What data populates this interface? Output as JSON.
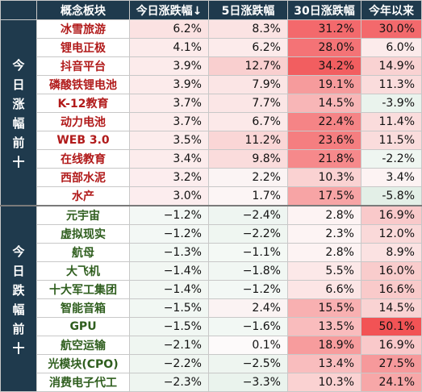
{
  "headers": [
    "概念板块",
    "今日涨跌幅↓",
    "5日涨跌幅",
    "30日涨跌幅",
    "今年以来"
  ],
  "groups": [
    {
      "label": "今日涨幅前十",
      "kind": "top",
      "rows": [
        {
          "name": "冰雪旅游",
          "vals": [
            "6.2%",
            "8.3%",
            "31.2%",
            "30.0%"
          ],
          "bg": [
            "#fbe2e2",
            "#fbe3e3",
            "#f3696c",
            "#f3696c"
          ]
        },
        {
          "name": "锂电正极",
          "vals": [
            "4.1%",
            "6.2%",
            "28.0%",
            "6.0%"
          ],
          "bg": [
            "#fcebeb",
            "#fcebeb",
            "#f47376",
            "#fcebeb"
          ]
        },
        {
          "name": "抖音平台",
          "vals": [
            "3.9%",
            "12.7%",
            "34.2%",
            "14.9%"
          ],
          "bg": [
            "#fcebeb",
            "#f9cfcf",
            "#f25e60",
            "#f9d2d2"
          ]
        },
        {
          "name": "磷酸铁锂电池",
          "vals": [
            "3.9%",
            "7.9%",
            "19.1%",
            "11.3%"
          ],
          "bg": [
            "#fcebeb",
            "#fbe5e5",
            "#f69b9c",
            "#fadcdc"
          ]
        },
        {
          "name": "K-12教育",
          "vals": [
            "3.7%",
            "7.7%",
            "14.5%",
            "-3.9%"
          ],
          "bg": [
            "#fcecec",
            "#fbe6e6",
            "#f8b6b7",
            "#eaf3ed"
          ]
        },
        {
          "name": "动力电池",
          "vals": [
            "3.7%",
            "6.7%",
            "22.4%",
            "11.4%"
          ],
          "bg": [
            "#fcecec",
            "#fce9e9",
            "#f58486",
            "#fadcdc"
          ]
        },
        {
          "name": "WEB 3.0",
          "vals": [
            "3.5%",
            "11.2%",
            "23.6%",
            "11.5%"
          ],
          "bg": [
            "#fcecec",
            "#fad6d6",
            "#f57e80",
            "#fadcdc"
          ]
        },
        {
          "name": "在线教育",
          "vals": [
            "3.4%",
            "9.8%",
            "21.8%",
            "-2.2%"
          ],
          "bg": [
            "#fcecec",
            "#fadcdc",
            "#f6898b",
            "#eff6f1"
          ]
        },
        {
          "name": "西部水泥",
          "vals": [
            "3.2%",
            "2.2%",
            "10.3%",
            "3.4%"
          ],
          "bg": [
            "#fcedee",
            "#fbf4f4",
            "#fad2d2",
            "#fdf3f3"
          ]
        },
        {
          "name": "水产",
          "vals": [
            "3.0%",
            "1.7%",
            "17.5%",
            "-5.8%"
          ],
          "bg": [
            "#fcedee",
            "#fcf5f5",
            "#f7a4a5",
            "#e3efe7"
          ]
        }
      ]
    },
    {
      "label": "今日跌幅前十",
      "kind": "bot",
      "rows": [
        {
          "name": "元宇宙",
          "vals": [
            "−1.2%",
            "−2.4%",
            "2.8%",
            "16.9%"
          ],
          "bg": [
            "#f3f8f5",
            "#eef5f1",
            "#fdf3f3",
            "#f9c9ca"
          ]
        },
        {
          "name": "虚拟现实",
          "vals": [
            "−1.2%",
            "−2.2%",
            "2.3%",
            "12.0%"
          ],
          "bg": [
            "#f3f8f5",
            "#eff6f1",
            "#fdf4f4",
            "#fad9d9"
          ]
        },
        {
          "name": "航母",
          "vals": [
            "−1.3%",
            "−1.1%",
            "2.8%",
            "8.9%"
          ],
          "bg": [
            "#f2f8f4",
            "#f4f9f5",
            "#fdf3f3",
            "#fbe2e2"
          ]
        },
        {
          "name": "大飞机",
          "vals": [
            "−1.4%",
            "−1.8%",
            "5.5%",
            "16.0%"
          ],
          "bg": [
            "#f2f7f3",
            "#f1f7f3",
            "#fce8e8",
            "#f9cccc"
          ]
        },
        {
          "name": "十大军工集团",
          "vals": [
            "−1.4%",
            "−1.2%",
            "6.6%",
            "16.6%"
          ],
          "bg": [
            "#f2f7f3",
            "#f3f8f5",
            "#fce5e5",
            "#f9caca"
          ]
        },
        {
          "name": "智能音箱",
          "vals": [
            "−1.5%",
            "2.4%",
            "15.5%",
            "14.5%"
          ],
          "bg": [
            "#f1f7f3",
            "#fbf3f3",
            "#f8b0b1",
            "#f9d3d3"
          ]
        },
        {
          "name": "GPU",
          "vals": [
            "−1.5%",
            "−1.6%",
            "13.5%",
            "50.1%"
          ],
          "bg": [
            "#f1f7f3",
            "#f2f8f4",
            "#f9bcbd",
            "#f25355"
          ]
        },
        {
          "name": "航空运输",
          "vals": [
            "−2.1%",
            "0.1%",
            "18.9%",
            "16.9%"
          ],
          "bg": [
            "#eff6f1",
            "#fdfafa",
            "#f79c9d",
            "#f9c9ca"
          ]
        },
        {
          "name": "光模块(CPO)",
          "vals": [
            "−2.2%",
            "−2.5%",
            "13.4%",
            "27.5%"
          ],
          "bg": [
            "#eff6f1",
            "#eef5f0",
            "#f9bdbe",
            "#f6999b"
          ]
        },
        {
          "name": "消费电子代工",
          "vals": [
            "−2.3%",
            "−3.3%",
            "10.3%",
            "24.1%"
          ],
          "bg": [
            "#eef5f0",
            "#eaf3ed",
            "#fad2d2",
            "#f7a7a8"
          ]
        }
      ]
    }
  ]
}
